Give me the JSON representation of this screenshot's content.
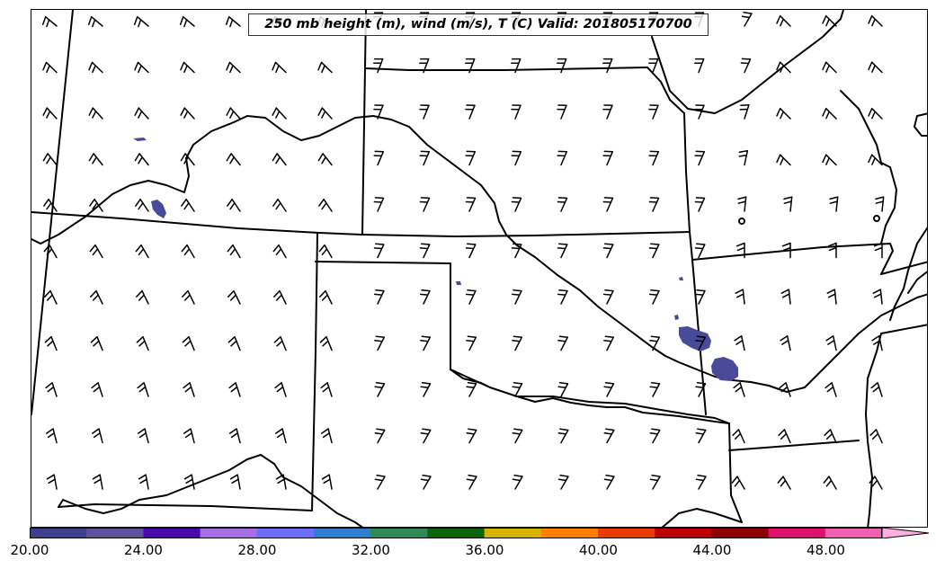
{
  "title": "250 mb height (m), wind (m/s), T (C) Valid: 201805170700",
  "colorbar": {
    "colors": [
      "#3f3f8f",
      "#5d539d",
      "#4a0aa8",
      "#a86ee4",
      "#6d6ff7",
      "#2f7fd0",
      "#2e8b57",
      "#0b640b",
      "#d8b300",
      "#ff8000",
      "#ee3a00",
      "#c00000",
      "#8b0000",
      "#e0106f",
      "#f060b0"
    ],
    "extend_color": "#ffb0e0",
    "tick_labels": [
      "20.00",
      "24.00",
      "28.00",
      "32.00",
      "36.00",
      "40.00",
      "44.00",
      "48.00"
    ]
  },
  "overlay_color": "#4a4a9a"
}
